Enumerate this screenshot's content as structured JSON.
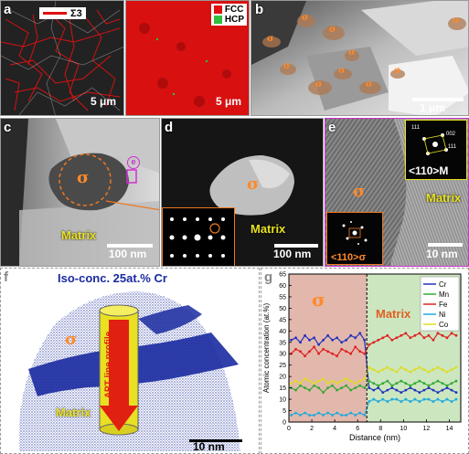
{
  "panel_a": {
    "label": "a",
    "legend_sigma3": "Σ3",
    "scalebar_left": "5 μm",
    "scalebar_right": "5 μm",
    "legend_fcc": "FCC",
    "legend_hcp": "HCP",
    "colors": {
      "fcc": "#e01010",
      "hcp": "#30c040",
      "sigma3": "#e01010"
    }
  },
  "panel_b": {
    "label": "b",
    "sigma_marks": [
      "σ",
      "σ",
      "σ",
      "σ",
      "σ",
      "σ",
      "σ",
      "σ",
      "σ",
      "σ"
    ],
    "scalebar": "1 μm"
  },
  "panel_c": {
    "label": "c",
    "sigma": "σ",
    "e_marker": "e",
    "matrix": "Matrix",
    "scalebar": "100 nm"
  },
  "panel_d": {
    "label": "d",
    "sigma": "σ",
    "matrix": "Matrix",
    "scalebar": "100 nm"
  },
  "panel_e": {
    "label": "e",
    "sigma": "σ",
    "matrix": "Matrix",
    "fft_top_label": "<110>M",
    "fft_top_indices": [
      "111",
      "002",
      "111"
    ],
    "fft_bottom_label": "<110>σ",
    "scalebar": "10 nm"
  },
  "panel_f": {
    "label": "f",
    "title": "Iso-conc. 25at.% Cr",
    "sigma": "σ",
    "matrix": "Matrix",
    "apt_label": "APT line profile",
    "scalebar": "10 nm"
  },
  "panel_g": {
    "label": "g",
    "sigma": "σ",
    "matrix": "Matrix"
  },
  "chart_data": {
    "type": "line",
    "xlabel": "Distance (nm)",
    "ylabel": "Atomic concentration (at.%)",
    "xlim": [
      0,
      15
    ],
    "ylim": [
      0,
      65
    ],
    "xticks": [
      0,
      2,
      4,
      6,
      8,
      10,
      12,
      14
    ],
    "yticks": [
      0,
      5,
      10,
      15,
      20,
      25,
      30,
      35,
      40,
      45,
      50,
      55,
      60,
      65
    ],
    "interface_x": 6.8,
    "legend_position": "top-right",
    "x": [
      0.2,
      0.6,
      1.0,
      1.4,
      1.8,
      2.2,
      2.6,
      3.0,
      3.4,
      3.8,
      4.2,
      4.6,
      5.0,
      5.4,
      5.8,
      6.2,
      6.6,
      7.0,
      7.4,
      7.8,
      8.2,
      8.6,
      9.0,
      9.4,
      9.8,
      10.2,
      10.6,
      11.0,
      11.4,
      11.8,
      12.2,
      12.6,
      13.0,
      13.4,
      13.8,
      14.2,
      14.6
    ],
    "series": [
      {
        "name": "Cr",
        "color": "#2233bb",
        "values": [
          36,
          37,
          35,
          38,
          36,
          37,
          34,
          36,
          38,
          36,
          37,
          35,
          36,
          38,
          37,
          39,
          36,
          15,
          14,
          15,
          13,
          14,
          15,
          14,
          13,
          14,
          15,
          14,
          13,
          14,
          15,
          14,
          13,
          14,
          15,
          14,
          13
        ]
      },
      {
        "name": "Mn",
        "color": "#33aa33",
        "values": [
          15,
          14,
          16,
          15,
          14,
          16,
          15,
          13,
          15,
          16,
          14,
          15,
          16,
          14,
          15,
          16,
          15,
          18,
          17,
          16,
          17,
          18,
          16,
          17,
          18,
          17,
          16,
          17,
          18,
          17,
          16,
          17,
          18,
          17,
          16,
          17,
          18
        ]
      },
      {
        "name": "Fe",
        "color": "#dd2222",
        "values": [
          30,
          32,
          31,
          29,
          31,
          33,
          30,
          32,
          31,
          30,
          29,
          32,
          31,
          30,
          33,
          31,
          30,
          34,
          35,
          36,
          37,
          38,
          36,
          37,
          38,
          39,
          37,
          38,
          39,
          37,
          38,
          36,
          39,
          38,
          37,
          39,
          38
        ]
      },
      {
        "name": "Ni",
        "color": "#22aadd",
        "values": [
          3,
          4,
          3,
          4,
          3,
          3,
          4,
          3,
          4,
          3,
          4,
          3,
          3,
          4,
          3,
          4,
          3,
          9,
          10,
          9,
          10,
          9,
          10,
          10,
          9,
          10,
          9,
          10,
          9,
          10,
          10,
          9,
          10,
          9,
          10,
          9,
          10
        ]
      },
      {
        "name": "Co",
        "color": "#dddd22",
        "values": [
          17,
          18,
          17,
          19,
          18,
          17,
          18,
          19,
          17,
          18,
          17,
          18,
          19,
          18,
          17,
          18,
          19,
          24,
          23,
          22,
          23,
          24,
          23,
          22,
          24,
          23,
          22,
          23,
          24,
          23,
          22,
          23,
          24,
          23,
          22,
          23,
          24
        ]
      }
    ]
  }
}
